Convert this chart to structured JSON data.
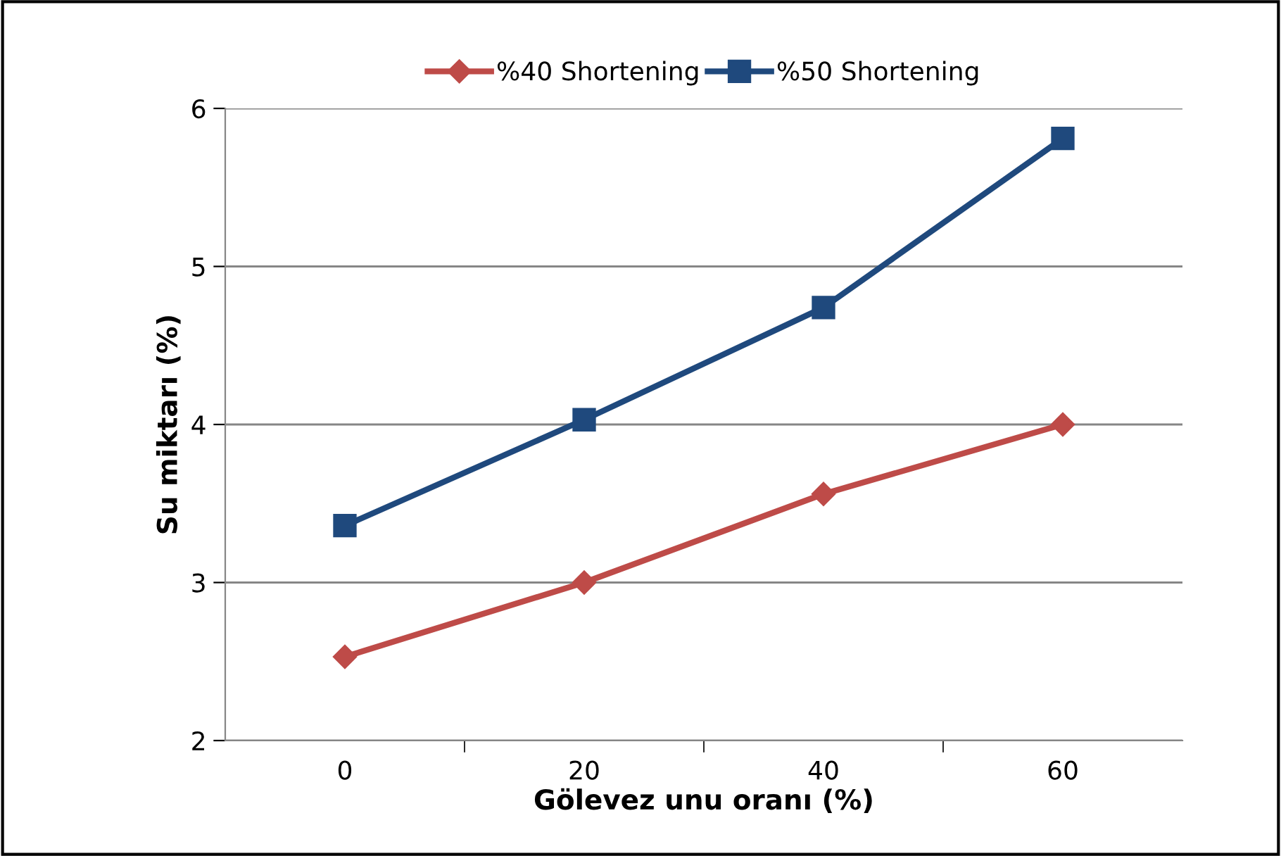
{
  "chart_data": {
    "type": "line",
    "xlabel": "Gölevez unu oranı (%)",
    "ylabel": "Su miktarı (%)",
    "categories": [
      "0",
      "20",
      "40",
      "60"
    ],
    "series": [
      {
        "name": "%40 Shortening",
        "color": "#be4b48",
        "marker": "diamond",
        "values": [
          2.53,
          3.0,
          3.56,
          4.0
        ]
      },
      {
        "name": "%50 Shortening",
        "color": "#1f497d",
        "marker": "square",
        "values": [
          3.36,
          4.03,
          4.74,
          5.81
        ]
      }
    ],
    "ylim": [
      2,
      6
    ],
    "yticks": [
      2,
      3,
      4,
      5,
      6
    ],
    "grid": "y",
    "legend": "top",
    "line_style": "solid"
  }
}
